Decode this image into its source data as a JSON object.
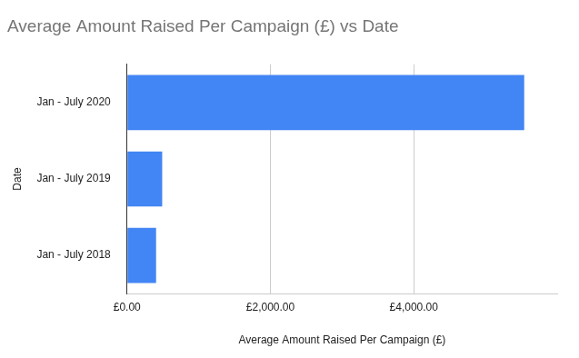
{
  "chart_data": {
    "type": "bar",
    "orientation": "horizontal",
    "title": "Average Amount Raised Per Campaign (£) vs Date",
    "x_label": "Average Amount Raised Per Campaign (£)",
    "y_label": "Date",
    "categories": [
      "Jan - July 2020",
      "Jan - July 2019",
      "Jan - July 2018"
    ],
    "values": [
      5540,
      490,
      405
    ],
    "color": "#4285f4",
    "xlim": [
      0,
      6000
    ],
    "xticks": [
      {
        "value": 0,
        "label": "£0.00"
      },
      {
        "value": 2000,
        "label": "£2,000.00"
      },
      {
        "value": 4000,
        "label": "£4,000.00"
      }
    ],
    "grid": true
  }
}
